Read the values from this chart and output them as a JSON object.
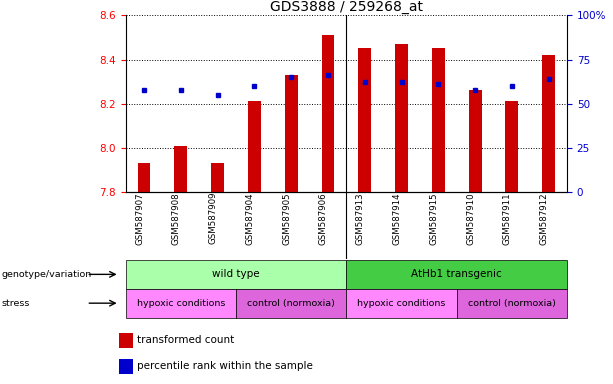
{
  "title": "GDS3888 / 259268_at",
  "samples": [
    "GSM587907",
    "GSM587908",
    "GSM587909",
    "GSM587904",
    "GSM587905",
    "GSM587906",
    "GSM587913",
    "GSM587914",
    "GSM587915",
    "GSM587910",
    "GSM587911",
    "GSM587912"
  ],
  "bar_values": [
    7.93,
    8.01,
    7.93,
    8.21,
    8.33,
    8.51,
    8.45,
    8.47,
    8.45,
    8.26,
    8.21,
    8.42
  ],
  "blue_values": [
    8.26,
    8.26,
    8.24,
    8.28,
    8.32,
    8.33,
    8.3,
    8.3,
    8.29,
    8.26,
    8.28,
    8.31
  ],
  "ylim": [
    7.8,
    8.6
  ],
  "y2lim": [
    0,
    100
  ],
  "y2ticks": [
    0,
    25,
    50,
    75,
    100
  ],
  "y2ticklabels": [
    "0",
    "25",
    "50",
    "75",
    "100%"
  ],
  "yticks": [
    7.8,
    8.0,
    8.2,
    8.4,
    8.6
  ],
  "bar_color": "#cc0000",
  "blue_color": "#0000cc",
  "bar_bottom": 7.8,
  "genotype_groups": [
    {
      "label": "wild type",
      "start": 0,
      "end": 6,
      "color": "#aaffaa"
    },
    {
      "label": "AtHb1 transgenic",
      "start": 6,
      "end": 12,
      "color": "#44cc44"
    }
  ],
  "stress_groups": [
    {
      "label": "hypoxic conditions",
      "start": 0,
      "end": 3,
      "color": "#ff88ff"
    },
    {
      "label": "control (normoxia)",
      "start": 3,
      "end": 6,
      "color": "#dd66dd"
    },
    {
      "label": "hypoxic conditions",
      "start": 6,
      "end": 9,
      "color": "#ff88ff"
    },
    {
      "label": "control (normoxia)",
      "start": 9,
      "end": 12,
      "color": "#dd66dd"
    }
  ],
  "tick_fontsize": 7.5,
  "title_fontsize": 10
}
